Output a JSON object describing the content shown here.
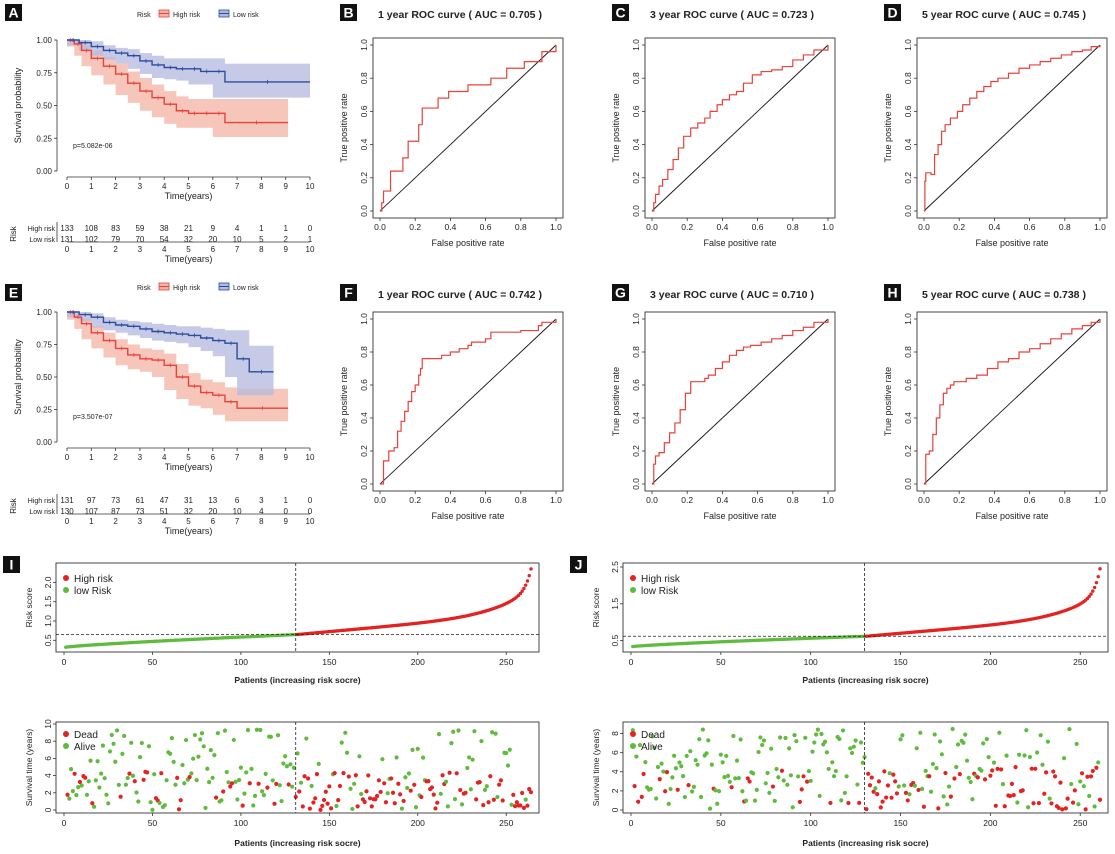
{
  "chart_data": [
    {
      "id": "A",
      "type": "line",
      "panel_label": "A",
      "title": "",
      "xlabel": "Time(years)",
      "ylabel": "Survival probability",
      "xlim": [
        0,
        10
      ],
      "ylim": [
        0,
        1
      ],
      "xticks": [
        0,
        1,
        2,
        3,
        4,
        5,
        6,
        7,
        8,
        9,
        10
      ],
      "yticks": [
        "0.00",
        "0.25",
        "0.50",
        "0.75",
        "1.00"
      ],
      "legend_title": "Risk",
      "legend_position": "top",
      "pvalue": "p=5.082e-06",
      "series": [
        {
          "name": "High risk",
          "color": "#e8423a",
          "band_color": "#f4b3a4",
          "x": [
            0,
            0.3,
            0.6,
            1.0,
            1.5,
            2.0,
            2.5,
            3.0,
            3.5,
            4.0,
            4.5,
            5.0,
            5.5,
            6.0,
            6.5,
            9.1
          ],
          "y": [
            1.0,
            0.97,
            0.92,
            0.86,
            0.8,
            0.74,
            0.67,
            0.61,
            0.56,
            0.51,
            0.46,
            0.44,
            0.44,
            0.44,
            0.37,
            0.37
          ],
          "lower": [
            1.0,
            0.95,
            0.88,
            0.8,
            0.73,
            0.66,
            0.58,
            0.52,
            0.46,
            0.41,
            0.36,
            0.33,
            0.33,
            0.33,
            0.26,
            0.26
          ],
          "upper": [
            1.0,
            0.99,
            0.96,
            0.92,
            0.87,
            0.82,
            0.76,
            0.71,
            0.66,
            0.61,
            0.57,
            0.55,
            0.55,
            0.55,
            0.55,
            0.55
          ]
        },
        {
          "name": "Low risk",
          "color": "#2a4d9e",
          "band_color": "#b4b8de",
          "x": [
            0,
            0.5,
            1.0,
            1.5,
            2.0,
            2.5,
            3.0,
            3.5,
            4.0,
            4.5,
            5.0,
            5.5,
            6.0,
            6.5,
            10.0
          ],
          "y": [
            1.0,
            0.98,
            0.95,
            0.92,
            0.9,
            0.88,
            0.84,
            0.81,
            0.79,
            0.78,
            0.78,
            0.76,
            0.76,
            0.68,
            0.68
          ],
          "lower": [
            1.0,
            0.96,
            0.92,
            0.88,
            0.85,
            0.82,
            0.78,
            0.74,
            0.71,
            0.7,
            0.69,
            0.66,
            0.66,
            0.56,
            0.56
          ],
          "upper": [
            1.0,
            1.0,
            0.99,
            0.96,
            0.94,
            0.93,
            0.9,
            0.88,
            0.86,
            0.86,
            0.86,
            0.86,
            0.86,
            0.82,
            0.82
          ]
        }
      ],
      "risk_table": {
        "title": "Risk",
        "xlabel": "Time(years)",
        "rows": [
          {
            "name": "High risk",
            "color": "#e8423a",
            "values": [
              133,
              108,
              83,
              59,
              38,
              21,
              9,
              4,
              1,
              1,
              0
            ]
          },
          {
            "name": "Low risk",
            "color": "#2a4d9e",
            "values": [
              131,
              102,
              79,
              70,
              54,
              32,
              20,
              10,
              5,
              2,
              1
            ]
          }
        ]
      }
    },
    {
      "id": "B",
      "type": "line",
      "panel_label": "B",
      "title": "1 year ROC curve ( AUC =  0.705 )",
      "xlabel": "False positive rate",
      "ylabel": "True positive rate",
      "xlim": [
        0,
        1
      ],
      "ylim": [
        0,
        1
      ],
      "xticks": [
        "0.0",
        "0.2",
        "0.4",
        "0.6",
        "0.8",
        "1.0"
      ],
      "yticks": [
        "0.0",
        "0.2",
        "0.4",
        "0.6",
        "0.8",
        "1.0"
      ],
      "color": "#e8423a",
      "x": [
        0,
        0.01,
        0.02,
        0.05,
        0.06,
        0.12,
        0.13,
        0.15,
        0.16,
        0.21,
        0.22,
        0.23,
        0.24,
        0.31,
        0.33,
        0.37,
        0.39,
        0.48,
        0.5,
        0.6,
        0.63,
        0.7,
        0.72,
        0.8,
        0.82,
        0.9,
        0.92,
        1.0
      ],
      "y": [
        0,
        0.05,
        0.12,
        0.12,
        0.24,
        0.24,
        0.32,
        0.32,
        0.42,
        0.42,
        0.52,
        0.52,
        0.62,
        0.62,
        0.68,
        0.68,
        0.72,
        0.72,
        0.76,
        0.76,
        0.8,
        0.8,
        0.86,
        0.86,
        0.9,
        0.9,
        0.96,
        1.0
      ]
    },
    {
      "id": "C",
      "type": "line",
      "panel_label": "C",
      "title": "3 year ROC curve ( AUC =  0.723 )",
      "xlabel": "False positive rate",
      "ylabel": "True positive rate",
      "xlim": [
        0,
        1
      ],
      "ylim": [
        0,
        1
      ],
      "xticks": [
        "0.0",
        "0.2",
        "0.4",
        "0.6",
        "0.8",
        "1.0"
      ],
      "yticks": [
        "0.0",
        "0.2",
        "0.4",
        "0.6",
        "0.8",
        "1.0"
      ],
      "color": "#e8423a",
      "x": [
        0,
        0.01,
        0.02,
        0.04,
        0.06,
        0.09,
        0.12,
        0.15,
        0.18,
        0.22,
        0.26,
        0.3,
        0.33,
        0.37,
        0.4,
        0.44,
        0.48,
        0.52,
        0.57,
        0.62,
        0.68,
        0.74,
        0.8,
        0.86,
        0.92,
        1.0
      ],
      "y": [
        0,
        0.05,
        0.1,
        0.15,
        0.19,
        0.25,
        0.31,
        0.38,
        0.45,
        0.5,
        0.53,
        0.56,
        0.6,
        0.64,
        0.67,
        0.7,
        0.72,
        0.77,
        0.82,
        0.84,
        0.85,
        0.87,
        0.91,
        0.94,
        0.97,
        1.0
      ]
    },
    {
      "id": "D",
      "type": "line",
      "panel_label": "D",
      "title": "5 year ROC curve ( AUC =  0.745 )",
      "xlabel": "False positive rate",
      "ylabel": "True positive rate",
      "xlim": [
        0,
        1
      ],
      "ylim": [
        0,
        1
      ],
      "xticks": [
        "0.0",
        "0.2",
        "0.4",
        "0.6",
        "0.8",
        "1.0"
      ],
      "yticks": [
        "0.0",
        "0.2",
        "0.4",
        "0.6",
        "0.8",
        "1.0"
      ],
      "color": "#e8423a",
      "x": [
        0,
        0.005,
        0.01,
        0.04,
        0.06,
        0.08,
        0.1,
        0.12,
        0.15,
        0.19,
        0.22,
        0.26,
        0.3,
        0.34,
        0.38,
        0.42,
        0.48,
        0.54,
        0.6,
        0.66,
        0.72,
        0.78,
        0.84,
        0.9,
        0.95,
        1.0
      ],
      "y": [
        0,
        0.18,
        0.23,
        0.22,
        0.34,
        0.4,
        0.48,
        0.52,
        0.56,
        0.6,
        0.64,
        0.68,
        0.72,
        0.75,
        0.78,
        0.8,
        0.83,
        0.86,
        0.88,
        0.9,
        0.92,
        0.94,
        0.96,
        0.97,
        0.99,
        1.0
      ]
    },
    {
      "id": "E",
      "type": "line",
      "panel_label": "E",
      "title": "",
      "xlabel": "Time(years)",
      "ylabel": "Survival probability",
      "xlim": [
        0,
        10
      ],
      "ylim": [
        0,
        1
      ],
      "xticks": [
        0,
        1,
        2,
        3,
        4,
        5,
        6,
        7,
        8,
        9,
        10
      ],
      "yticks": [
        "0.00",
        "0.25",
        "0.50",
        "0.75",
        "1.00"
      ],
      "legend_title": "Risk",
      "legend_position": "top",
      "pvalue": "p=3.507e-07",
      "series": [
        {
          "name": "High risk",
          "color": "#e8423a",
          "band_color": "#f4b3a4",
          "x": [
            0,
            0.3,
            0.6,
            1.0,
            1.5,
            2.0,
            2.5,
            3.0,
            3.5,
            4.0,
            4.5,
            5.0,
            5.5,
            6.0,
            6.5,
            7.0,
            9.1
          ],
          "y": [
            1.0,
            0.96,
            0.91,
            0.84,
            0.78,
            0.72,
            0.67,
            0.64,
            0.63,
            0.59,
            0.5,
            0.43,
            0.38,
            0.36,
            0.31,
            0.26,
            0.26
          ],
          "lower": [
            1.0,
            0.94,
            0.87,
            0.79,
            0.72,
            0.65,
            0.59,
            0.56,
            0.54,
            0.5,
            0.4,
            0.33,
            0.28,
            0.26,
            0.21,
            0.16,
            0.16
          ],
          "upper": [
            1.0,
            0.98,
            0.95,
            0.89,
            0.84,
            0.79,
            0.75,
            0.72,
            0.71,
            0.68,
            0.6,
            0.53,
            0.48,
            0.46,
            0.42,
            0.41,
            0.41
          ]
        },
        {
          "name": "Low risk",
          "color": "#2a4d9e",
          "band_color": "#b4b8de",
          "x": [
            0,
            0.5,
            1.0,
            1.5,
            2.0,
            2.5,
            3.0,
            3.5,
            4.0,
            4.5,
            5.0,
            5.5,
            6.0,
            6.5,
            7.0,
            7.5,
            8.5
          ],
          "y": [
            1.0,
            0.98,
            0.96,
            0.92,
            0.9,
            0.89,
            0.87,
            0.85,
            0.84,
            0.83,
            0.82,
            0.8,
            0.78,
            0.76,
            0.64,
            0.54,
            0.54
          ],
          "lower": [
            1.0,
            0.96,
            0.93,
            0.88,
            0.86,
            0.84,
            0.82,
            0.8,
            0.78,
            0.77,
            0.76,
            0.73,
            0.7,
            0.66,
            0.5,
            0.36,
            0.36
          ],
          "upper": [
            1.0,
            1.0,
            0.99,
            0.96,
            0.94,
            0.93,
            0.92,
            0.91,
            0.9,
            0.89,
            0.89,
            0.88,
            0.87,
            0.86,
            0.86,
            0.74,
            0.74
          ]
        }
      ],
      "risk_table": {
        "title": "Risk",
        "xlabel": "Time(years)",
        "rows": [
          {
            "name": "High risk",
            "color": "#e8423a",
            "values": [
              131,
              97,
              73,
              61,
              47,
              31,
              13,
              6,
              3,
              1,
              0
            ]
          },
          {
            "name": "Low risk",
            "color": "#2a4d9e",
            "values": [
              130,
              107,
              87,
              73,
              51,
              32,
              20,
              10,
              4,
              0,
              0
            ]
          }
        ]
      }
    },
    {
      "id": "F",
      "type": "line",
      "panel_label": "F",
      "title": "1 year ROC curve ( AUC =  0.742 )",
      "xlabel": "False positive rate",
      "ylabel": "True positive rate",
      "xlim": [
        0,
        1
      ],
      "ylim": [
        0,
        1
      ],
      "xticks": [
        "0.0",
        "0.2",
        "0.4",
        "0.6",
        "0.8",
        "1.0"
      ],
      "yticks": [
        "0.0",
        "0.2",
        "0.4",
        "0.6",
        "0.8",
        "1.0"
      ],
      "color": "#e8423a",
      "x": [
        0,
        0.02,
        0.03,
        0.05,
        0.08,
        0.1,
        0.12,
        0.14,
        0.16,
        0.18,
        0.2,
        0.22,
        0.23,
        0.24,
        0.26,
        0.3,
        0.35,
        0.4,
        0.45,
        0.5,
        0.52,
        0.56,
        0.6,
        0.63,
        0.7,
        0.8,
        0.9,
        0.92,
        1.0
      ],
      "y": [
        0,
        0.14,
        0.14,
        0.2,
        0.22,
        0.32,
        0.38,
        0.44,
        0.5,
        0.56,
        0.6,
        0.66,
        0.7,
        0.76,
        0.76,
        0.76,
        0.78,
        0.8,
        0.82,
        0.84,
        0.86,
        0.86,
        0.88,
        0.92,
        0.92,
        0.93,
        0.96,
        0.98,
        1.0
      ]
    },
    {
      "id": "G",
      "type": "line",
      "panel_label": "G",
      "title": "3 year ROC curve ( AUC =  0.710 )",
      "xlabel": "False positive rate",
      "ylabel": "True positive rate",
      "xlim": [
        0,
        1
      ],
      "ylim": [
        0,
        1
      ],
      "xticks": [
        "0.0",
        "0.2",
        "0.4",
        "0.6",
        "0.8",
        "1.0"
      ],
      "yticks": [
        "0.0",
        "0.2",
        "0.4",
        "0.6",
        "0.8",
        "1.0"
      ],
      "color": "#e8423a",
      "x": [
        0,
        0.01,
        0.02,
        0.04,
        0.07,
        0.1,
        0.13,
        0.16,
        0.19,
        0.22,
        0.26,
        0.3,
        0.32,
        0.36,
        0.4,
        0.44,
        0.48,
        0.52,
        0.56,
        0.62,
        0.68,
        0.74,
        0.8,
        0.86,
        0.92,
        1.0
      ],
      "y": [
        0,
        0.12,
        0.17,
        0.19,
        0.25,
        0.31,
        0.37,
        0.45,
        0.55,
        0.62,
        0.62,
        0.64,
        0.66,
        0.7,
        0.74,
        0.78,
        0.81,
        0.83,
        0.84,
        0.86,
        0.88,
        0.9,
        0.93,
        0.95,
        0.98,
        1.0
      ]
    },
    {
      "id": "H",
      "type": "line",
      "panel_label": "H",
      "title": "5 year ROC curve ( AUC =  0.738 )",
      "xlabel": "False positive rate",
      "ylabel": "True positive rate",
      "xlim": [
        0,
        1
      ],
      "ylim": [
        0,
        1
      ],
      "xticks": [
        "0.0",
        "0.2",
        "0.4",
        "0.6",
        "0.8",
        "1.0"
      ],
      "yticks": [
        "0.0",
        "0.2",
        "0.4",
        "0.6",
        "0.8",
        "1.0"
      ],
      "color": "#e8423a",
      "x": [
        0,
        0.01,
        0.03,
        0.05,
        0.07,
        0.09,
        0.11,
        0.13,
        0.15,
        0.17,
        0.2,
        0.24,
        0.3,
        0.36,
        0.42,
        0.48,
        0.54,
        0.6,
        0.66,
        0.72,
        0.78,
        0.84,
        0.9,
        0.95,
        1.0
      ],
      "y": [
        0,
        0.18,
        0.2,
        0.3,
        0.4,
        0.48,
        0.55,
        0.58,
        0.6,
        0.62,
        0.62,
        0.64,
        0.66,
        0.7,
        0.74,
        0.76,
        0.8,
        0.82,
        0.85,
        0.88,
        0.91,
        0.94,
        0.96,
        0.98,
        1.0
      ]
    },
    {
      "id": "I",
      "type": "scatter",
      "panel_label": "I",
      "title": "",
      "xlabel": "Patients (increasing risk socre)",
      "ylabel": "Risk score",
      "xlim": [
        0,
        264
      ],
      "ylim": [
        0.3,
        2.4
      ],
      "xticks": [
        0,
        50,
        100,
        150,
        200,
        250
      ],
      "yticks": [
        "0.5",
        "1.0",
        "1.5",
        "2.0"
      ],
      "n_patients": 264,
      "n_low": 131,
      "cutoff": 0.65,
      "score_min": 0.32,
      "score_max": 2.35,
      "series": [
        {
          "name": "High risk",
          "color": "#e32222"
        },
        {
          "name": "low Risk",
          "color": "#5fbb3e"
        }
      ],
      "legend_position": "top-left"
    },
    {
      "id": "I2",
      "type": "scatter",
      "panel_label": "",
      "title": "",
      "xlabel": "Patients (increasing risk socre)",
      "ylabel": "Survival time (years)",
      "xlim": [
        0,
        264
      ],
      "ylim": [
        0,
        10
      ],
      "xticks": [
        0,
        50,
        100,
        150,
        200,
        250
      ],
      "yticks": [
        "0",
        "2",
        "4",
        "6",
        "8",
        "10"
      ],
      "n_patients": 264,
      "divider": 131,
      "series": [
        {
          "name": "Dead",
          "color": "#e32222"
        },
        {
          "name": "Alive",
          "color": "#5fbb3e"
        }
      ],
      "legend_position": "top-left"
    },
    {
      "id": "J",
      "type": "scatter",
      "panel_label": "J",
      "title": "",
      "xlabel": "Patients (increasing risk socre)",
      "ylabel": "Risk score",
      "xlim": [
        0,
        261
      ],
      "ylim": [
        0.3,
        2.5
      ],
      "xticks": [
        0,
        50,
        100,
        150,
        200,
        250
      ],
      "yticks": [
        "0.5",
        "1.5",
        "2.5"
      ],
      "n_patients": 261,
      "n_low": 130,
      "cutoff": 0.62,
      "score_min": 0.34,
      "score_max": 2.45,
      "series": [
        {
          "name": "High risk",
          "color": "#e32222"
        },
        {
          "name": "low Risk",
          "color": "#5fbb3e"
        }
      ],
      "legend_position": "top-left"
    },
    {
      "id": "J2",
      "type": "scatter",
      "panel_label": "",
      "title": "",
      "xlabel": "Patients (increasing risk socre)",
      "ylabel": "Survival time (years)",
      "xlim": [
        0,
        261
      ],
      "ylim": [
        0,
        9
      ],
      "xticks": [
        0,
        50,
        100,
        150,
        200,
        250
      ],
      "yticks": [
        "0",
        "2",
        "4",
        "6",
        "8"
      ],
      "n_patients": 261,
      "divider": 130,
      "series": [
        {
          "name": "Dead",
          "color": "#e32222"
        },
        {
          "name": "Alive",
          "color": "#5fbb3e"
        }
      ],
      "legend_position": "top-left"
    }
  ]
}
